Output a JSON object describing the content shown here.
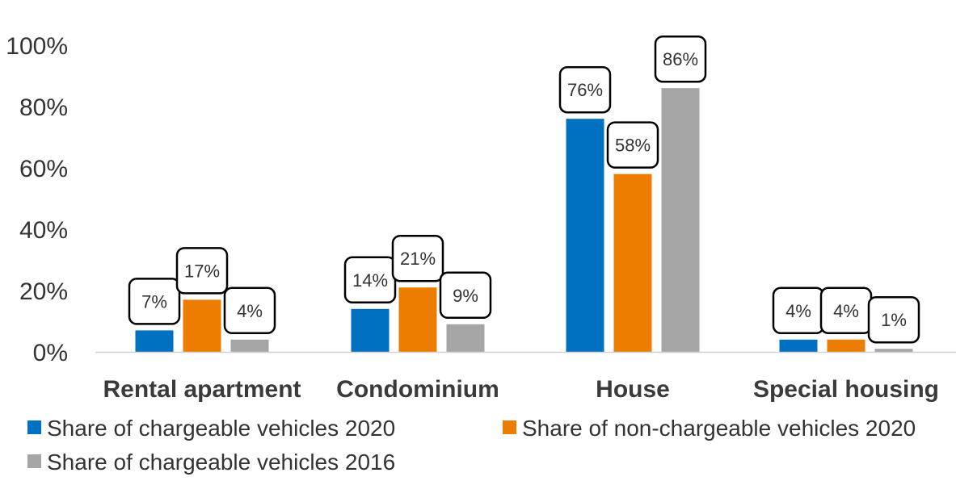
{
  "chart_data": {
    "type": "bar",
    "title": "",
    "xlabel": "",
    "ylabel": "",
    "categories": [
      "Rental apartment",
      "Condominium",
      "House",
      "Special housing"
    ],
    "ylim": [
      0,
      100
    ],
    "yticks": [
      0,
      20,
      40,
      60,
      80,
      100
    ],
    "ytick_labels": [
      "0%",
      "20%",
      "40%",
      "60%",
      "80%",
      "100%"
    ],
    "grid": false,
    "legend_position": "bottom",
    "series": [
      {
        "name": "Share of chargeable vehicles 2020",
        "color": "#0070C0",
        "values": [
          7,
          14,
          76,
          4
        ],
        "labels": [
          "7%",
          "14%",
          "76%",
          "4%"
        ]
      },
      {
        "name": "Share of non-chargeable vehicles 2020",
        "color": "#ED7D00",
        "values": [
          17,
          21,
          58,
          4
        ],
        "labels": [
          "17%",
          "21%",
          "58%",
          "4%"
        ]
      },
      {
        "name": "Share of chargeable vehicles 2016",
        "color": "#A5A5A5",
        "values": [
          4,
          9,
          86,
          1
        ],
        "labels": [
          "4%",
          "9%",
          "86%",
          "1%"
        ]
      }
    ]
  }
}
